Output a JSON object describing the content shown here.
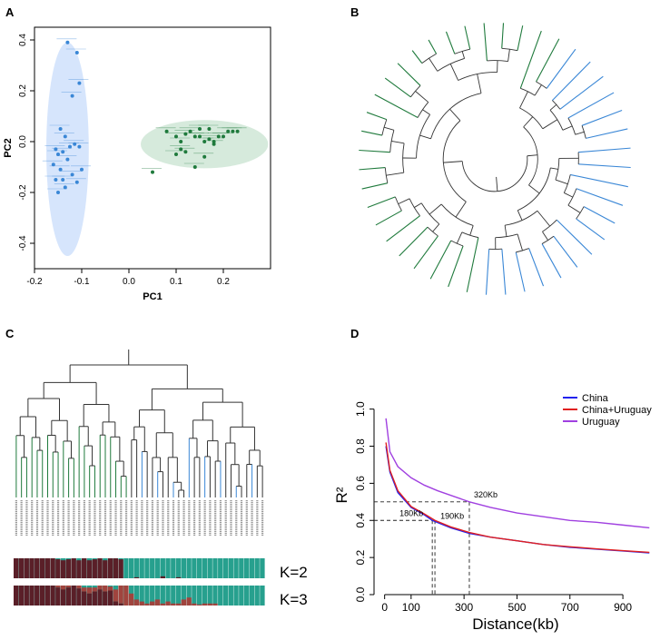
{
  "colors": {
    "blue": "#3a87d6",
    "green": "#1f7a3c",
    "ellipse_blue": "#cfe0fb",
    "ellipse_green": "#cfe6d6",
    "china": "#2222ee",
    "china_uruguay": "#e02020",
    "uruguay": "#a040e0",
    "k_dark": "#5a1f28",
    "k_teal": "#27a08e",
    "k_mid": "#a0443e",
    "tree": "#333333"
  },
  "panels": {
    "a": "A",
    "b": "B",
    "c": "C",
    "d": "D"
  },
  "chart_data": [
    {
      "panel": "A",
      "type": "scatter",
      "xlabel": "PC1",
      "ylabel": "PC2",
      "xlim": [
        -0.2,
        0.3
      ],
      "ylim": [
        -0.5,
        0.45
      ],
      "xticks": [
        -0.2,
        -0.1,
        0.0,
        0.1,
        0.2
      ],
      "xtick_labels": [
        "-0.2",
        "-0.1",
        "0.0",
        "0.1",
        "0.2"
      ],
      "yticks": [
        -0.4,
        -0.2,
        0.0,
        0.2,
        0.4
      ],
      "ytick_labels": [
        "-0.4",
        "-0.2",
        "0.0",
        "0.2",
        "0.4"
      ],
      "series": [
        {
          "name": "blue group",
          "color": "#3a87d6",
          "ellipse": {
            "cx": -0.13,
            "cy": -0.03,
            "rx": 0.045,
            "ry": 0.42
          },
          "x": [
            -0.13,
            -0.11,
            -0.105,
            -0.12,
            -0.145,
            -0.135,
            -0.115,
            -0.125,
            -0.155,
            -0.14,
            -0.15,
            -0.105,
            -0.13,
            -0.16,
            -0.145,
            -0.1,
            -0.12,
            -0.155,
            -0.14,
            -0.11,
            -0.135,
            -0.15
          ],
          "y": [
            0.39,
            0.35,
            0.23,
            0.18,
            0.05,
            0.02,
            -0.01,
            -0.02,
            -0.03,
            -0.04,
            -0.05,
            -0.02,
            -0.07,
            -0.09,
            -0.11,
            -0.11,
            -0.13,
            -0.15,
            -0.15,
            -0.16,
            -0.18,
            -0.2
          ]
        },
        {
          "name": "green group",
          "color": "#1f7a3c",
          "ellipse": {
            "cx": 0.16,
            "cy": -0.01,
            "rx": 0.135,
            "ry": 0.095
          },
          "x": [
            0.05,
            0.08,
            0.1,
            0.11,
            0.12,
            0.13,
            0.14,
            0.15,
            0.16,
            0.17,
            0.18,
            0.19,
            0.21,
            0.22,
            0.23,
            0.12,
            0.1,
            0.16,
            0.14,
            0.18,
            0.2,
            0.15,
            0.11,
            0.17
          ],
          "y": [
            -0.12,
            0.04,
            0.02,
            0.0,
            0.03,
            0.04,
            0.02,
            0.05,
            0.0,
            0.01,
            -0.01,
            0.02,
            0.04,
            0.04,
            0.04,
            -0.04,
            -0.05,
            -0.06,
            -0.1,
            0.0,
            0.02,
            0.02,
            -0.03,
            0.05
          ]
        }
      ]
    },
    {
      "panel": "B",
      "type": "dendrogram",
      "layout": "circular",
      "branch_colors": [
        "#3a87d6",
        "#1f7a3c"
      ],
      "leaves": 44
    },
    {
      "panel": "C",
      "type": "dendrogram+admixture",
      "leaves": 48,
      "k_labels": [
        "K=2",
        "K=3"
      ],
      "k2": {
        "dark": [
          1,
          1,
          1,
          1,
          1,
          1,
          1,
          1,
          0.95,
          0.9,
          0.95,
          1,
          0.9,
          1,
          0.9,
          0.95,
          1,
          0.9,
          1,
          1,
          0.95,
          0,
          0,
          0.05,
          0,
          0,
          0,
          0,
          0.1,
          0,
          0,
          0.05,
          0,
          0,
          0,
          0,
          0,
          0,
          0,
          0,
          0,
          0,
          0,
          0,
          0,
          0,
          0,
          0
        ]
      },
      "k3": {
        "dark": [
          1,
          1,
          1,
          1,
          1,
          1,
          1,
          1,
          0.9,
          0.8,
          0.9,
          1,
          0.85,
          0.7,
          0.6,
          0.7,
          0.8,
          0.7,
          0.75,
          0.2,
          0.1,
          0,
          0,
          0,
          0,
          0,
          0,
          0,
          0,
          0,
          0,
          0,
          0,
          0,
          0,
          0,
          0,
          0,
          0,
          0,
          0,
          0,
          0,
          0,
          0,
          0,
          0,
          0
        ],
        "mid": [
          0,
          0,
          0,
          0,
          0,
          0,
          0,
          0,
          0.1,
          0.2,
          0.1,
          0,
          0.15,
          0.2,
          0.3,
          0.2,
          0.2,
          0.3,
          0.2,
          0.6,
          0.9,
          1,
          0.6,
          0.3,
          0.2,
          0.1,
          0.2,
          0.3,
          0.1,
          0.2,
          0.1,
          0.1,
          0.3,
          0.4,
          0.1,
          0.05,
          0.1,
          0.1,
          0.1,
          0,
          0,
          0,
          0,
          0,
          0,
          0,
          0,
          0
        ]
      }
    },
    {
      "panel": "D",
      "type": "line",
      "xlabel": "Distance(kb)",
      "ylabel": "R²",
      "xlim": [
        -40,
        1030
      ],
      "ylim": [
        0,
        1.15
      ],
      "xticks": [
        0,
        100,
        300,
        500,
        700,
        900
      ],
      "xtick_labels": [
        "0",
        "100",
        "300",
        "500",
        "700",
        "900"
      ],
      "yticks": [
        0.0,
        0.2,
        0.4,
        0.6,
        0.8,
        1.0
      ],
      "ytick_labels": [
        "0.0",
        "0.2",
        "0.4",
        "0.6",
        "0.8",
        "1.0"
      ],
      "legend": {
        "position": "top-right",
        "entries": [
          "China",
          "China+Uruguay",
          "Uruguay"
        ]
      },
      "series": [
        {
          "name": "China",
          "color": "#2222ee",
          "x": [
            5,
            20,
            50,
            100,
            150,
            180,
            250,
            320,
            400,
            500,
            600,
            700,
            800,
            900,
            1000
          ],
          "y": [
            0.8,
            0.66,
            0.55,
            0.47,
            0.43,
            0.4,
            0.36,
            0.33,
            0.31,
            0.29,
            0.27,
            0.255,
            0.245,
            0.235,
            0.225
          ]
        },
        {
          "name": "China+Uruguay",
          "color": "#e02020",
          "x": [
            5,
            20,
            50,
            100,
            150,
            190,
            250,
            320,
            400,
            500,
            600,
            700,
            800,
            900,
            1000
          ],
          "y": [
            0.82,
            0.67,
            0.56,
            0.475,
            0.435,
            0.4,
            0.365,
            0.335,
            0.31,
            0.29,
            0.27,
            0.258,
            0.247,
            0.237,
            0.228
          ]
        },
        {
          "name": "Uruguay",
          "color": "#a040e0",
          "x": [
            5,
            20,
            50,
            100,
            150,
            200,
            320,
            400,
            500,
            600,
            700,
            800,
            900,
            1000
          ],
          "y": [
            0.95,
            0.77,
            0.69,
            0.63,
            0.59,
            0.56,
            0.5,
            0.47,
            0.44,
            0.42,
            0.4,
            0.39,
            0.375,
            0.36
          ]
        }
      ],
      "annotations": [
        {
          "label": "180Kb",
          "x": 180,
          "y": 0.4
        },
        {
          "label": "190Kb",
          "x": 190,
          "y": 0.4
        },
        {
          "label": "320Kb",
          "x": 320,
          "y": 0.5
        }
      ]
    }
  ]
}
